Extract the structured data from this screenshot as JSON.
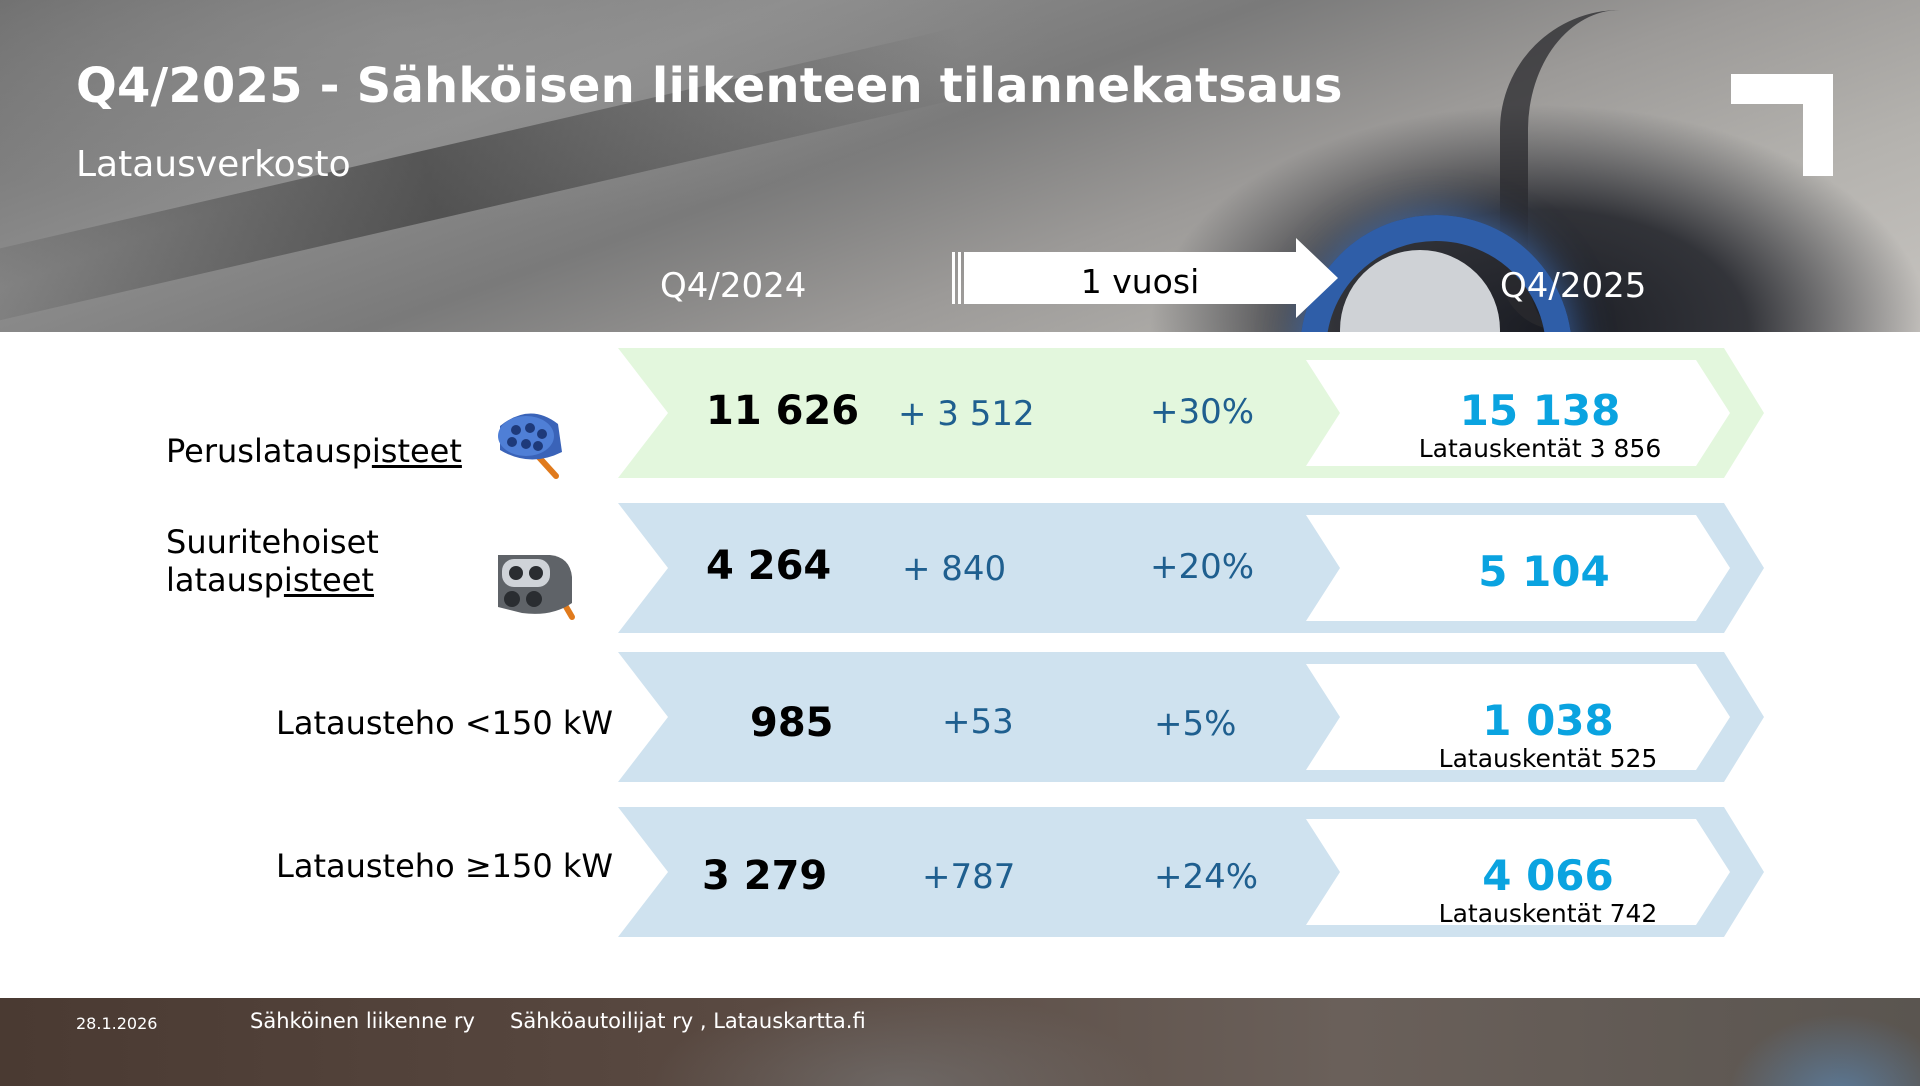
{
  "header": {
    "title": "Q4/2025 - Sähköisen liikenteen tilannekatsaus",
    "subtitle": "Latausverkosto",
    "period_previous": "Q4/2024",
    "period_change": "1 vuosi",
    "period_current": "Q4/2025"
  },
  "colors": {
    "green_band": "#e3f7dd",
    "blue_band": "#cfe2ef",
    "accent_value": "#0aa3e0",
    "delta_text": "#1f5f8f"
  },
  "rows": [
    {
      "label_prefix": "Peruslatausp",
      "label_underlined": "isteet",
      "icon": "type2-connector-icon",
      "previous": "11 626",
      "change": "+ 3 512",
      "change_pct": "+30%",
      "current": "15 138",
      "fields": "Latauskentät 3 856"
    },
    {
      "label_line1": "Suuritehoiset",
      "label_prefix": "latausp",
      "label_underlined": "isteet",
      "icon": "ccs-connector-icon",
      "previous": "4 264",
      "change": "+ 840",
      "change_pct": "+20%",
      "current": "5 104"
    },
    {
      "label": "Lataustehо <150 kW",
      "previous": "985",
      "change": "+53",
      "change_pct": "+5%",
      "current": "1 038",
      "fields": "Latauskentät 525"
    },
    {
      "label": "Lataustehо ≥150 kW",
      "previous": "3 279",
      "change": "+787",
      "change_pct": "+24%",
      "current": "4 066",
      "fields": "Latauskentät 742"
    }
  ],
  "footer": {
    "date": "28.1.2026",
    "source_1": "Sähköinen liikenne ry",
    "source_2": "Sähköautoilijat ry , Latauskartta.fi"
  }
}
